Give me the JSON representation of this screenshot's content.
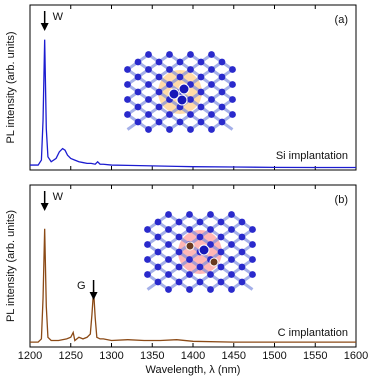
{
  "chart_data": [
    {
      "type": "line",
      "panel_label": "(a)",
      "ylabel": "PL intensity (arb. units)",
      "sample_label": "Si implantation",
      "annotations": [
        "W"
      ],
      "xlim": [
        1200,
        1600
      ],
      "xticks": [
        1200,
        1250,
        1300,
        1350,
        1400,
        1450,
        1500,
        1550,
        1600
      ],
      "xtick_labels": false,
      "ylim": [
        0,
        100
      ],
      "series": [
        {
          "name": "Si implantation",
          "color": "#1c1cd0",
          "x": [
            1200,
            1210,
            1214,
            1216,
            1218,
            1220,
            1222,
            1226,
            1232,
            1236,
            1240,
            1243,
            1246,
            1250,
            1255,
            1260,
            1265,
            1270,
            1275,
            1280,
            1283,
            1286,
            1290,
            1300,
            1320,
            1350,
            1380,
            1400,
            1450,
            1500,
            1550,
            1600
          ],
          "values": [
            3,
            3,
            6,
            30,
            79,
            25,
            8,
            5,
            7,
            11,
            13,
            12,
            9,
            7,
            6,
            5,
            4.5,
            4,
            4,
            3.5,
            5,
            3.5,
            3.5,
            3,
            2.8,
            2.5,
            2.2,
            2,
            1.8,
            1.6,
            1.5,
            1.5
          ]
        }
      ]
    },
    {
      "type": "line",
      "panel_label": "(b)",
      "ylabel": "PL intensity (arb. units)",
      "xlabel": "Wavelength, λ (nm)",
      "sample_label": "C implantation",
      "annotations": [
        "W",
        "G"
      ],
      "xlim": [
        1200,
        1600
      ],
      "xticks": [
        1200,
        1250,
        1300,
        1350,
        1400,
        1450,
        1500,
        1550,
        1600
      ],
      "xtick_labels": true,
      "ylim": [
        0,
        100
      ],
      "series": [
        {
          "name": "C implantation",
          "color": "#8b4a16",
          "x": [
            1200,
            1210,
            1214,
            1216,
            1218,
            1220,
            1222,
            1226,
            1235,
            1245,
            1250,
            1253,
            1255,
            1260,
            1265,
            1270,
            1274,
            1276,
            1278,
            1280,
            1282,
            1286,
            1290,
            1300,
            1320,
            1340,
            1360,
            1380,
            1400,
            1450,
            1500,
            1550,
            1600
          ],
          "values": [
            3,
            3,
            5,
            30,
            73,
            25,
            6,
            4,
            4,
            5,
            6,
            9,
            4,
            6,
            5,
            6,
            8,
            20,
            35,
            18,
            6,
            5,
            5,
            4,
            4.5,
            4,
            4,
            4.5,
            3.5,
            3,
            3,
            3,
            3
          ]
        }
      ]
    }
  ]
}
